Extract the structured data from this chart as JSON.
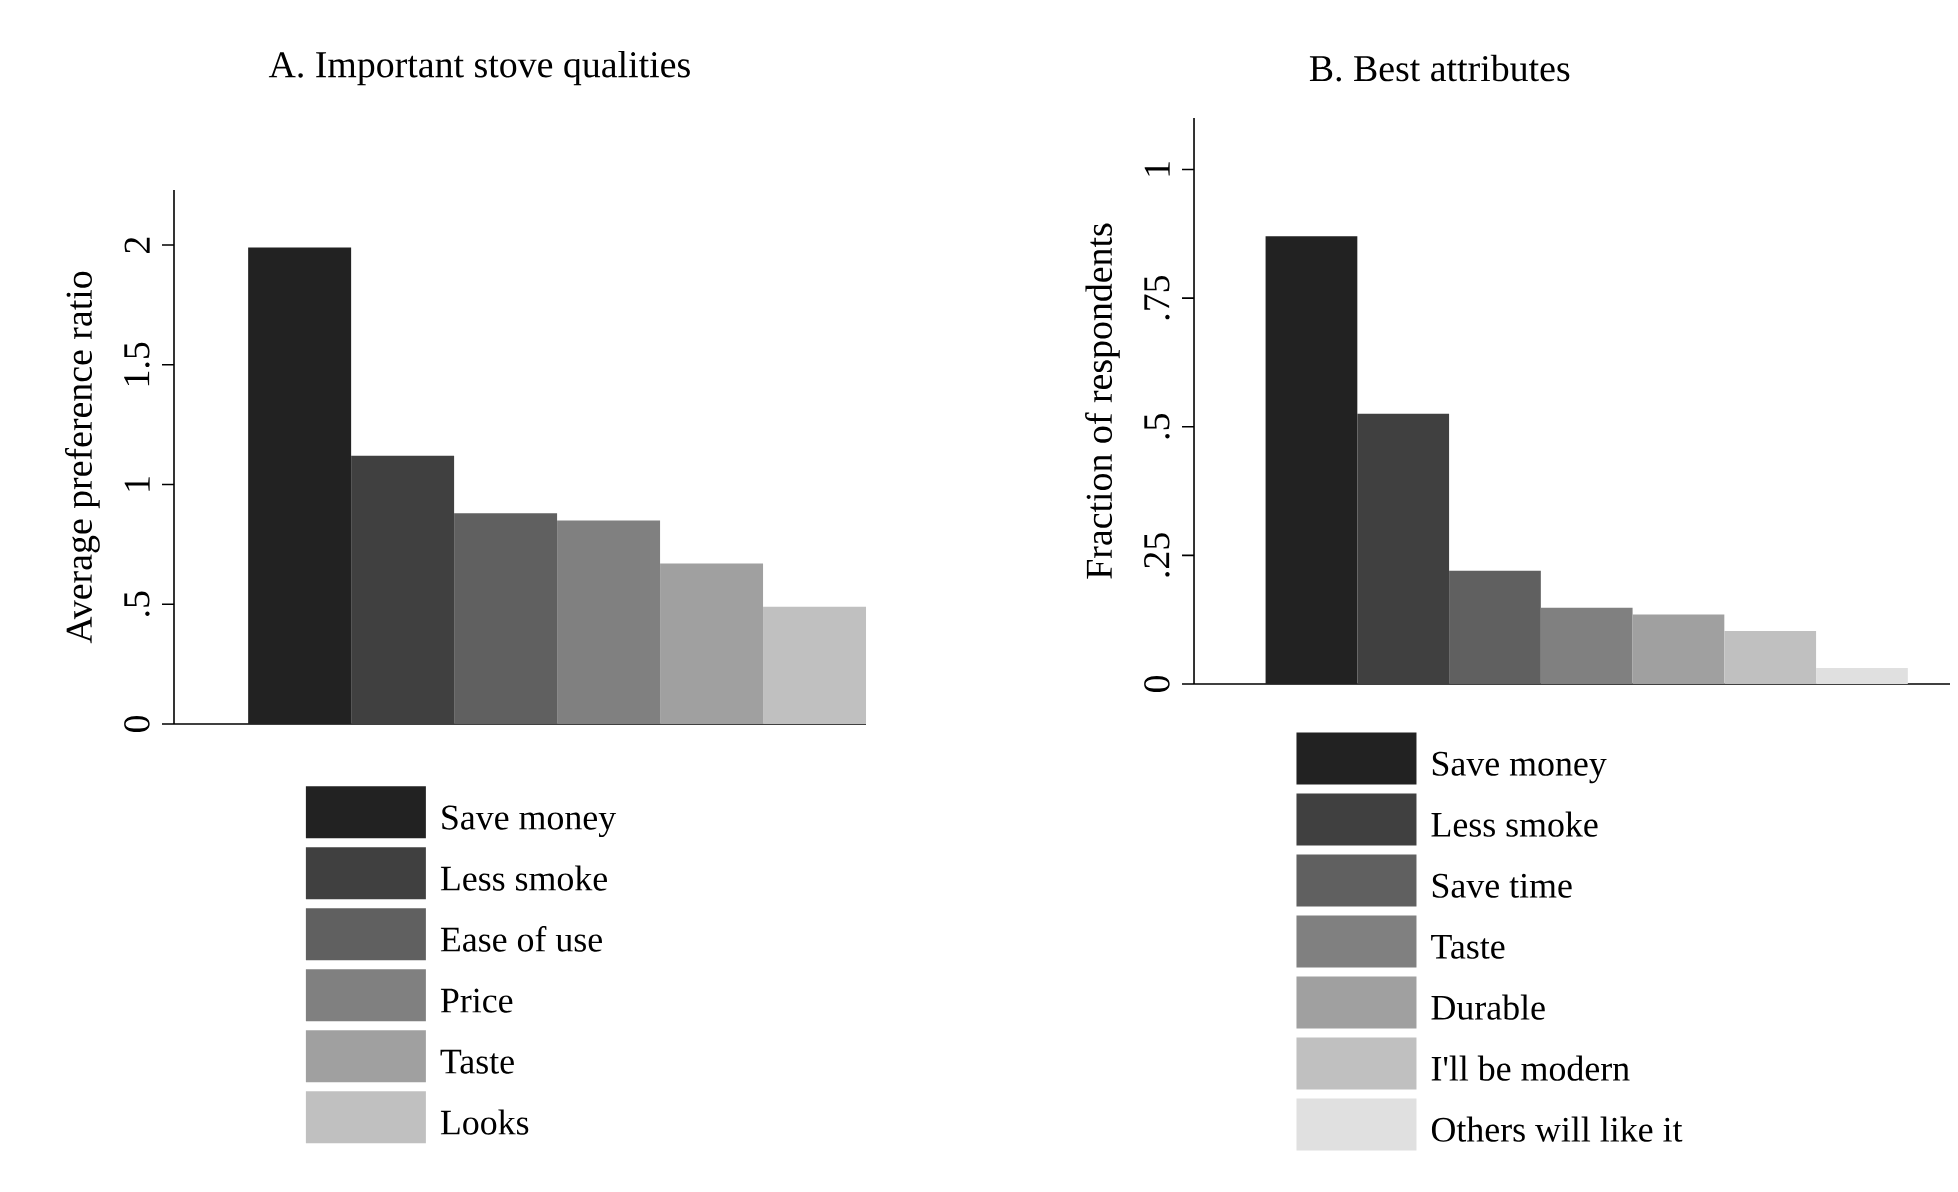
{
  "chart_data": [
    {
      "type": "bar",
      "title": "A. Important stove qualities",
      "ylabel": "Average preference ratio",
      "categories": [
        null,
        null,
        null,
        null,
        null,
        null
      ],
      "series": [
        {
          "name": "Save money",
          "color": "#222222",
          "values": [
            1.99,
            null,
            null,
            null,
            null,
            null
          ]
        },
        {
          "name": "Less smoke",
          "color": "#404040",
          "values": [
            null,
            1.12,
            null,
            null,
            null,
            null
          ]
        },
        {
          "name": "Ease of use",
          "color": "#606060",
          "values": [
            null,
            null,
            0.88,
            null,
            null,
            null
          ]
        },
        {
          "name": "Price",
          "color": "#808080",
          "values": [
            null,
            null,
            null,
            0.85,
            null,
            null
          ]
        },
        {
          "name": "Taste",
          "color": "#a0a0a0",
          "values": [
            null,
            null,
            null,
            null,
            0.67,
            null
          ]
        },
        {
          "name": "Looks",
          "color": "#c0c0c0",
          "values": [
            null,
            null,
            null,
            null,
            null,
            0.49
          ]
        }
      ],
      "stacked": true,
      "ylim": [
        0,
        2.23
      ],
      "yticks": [
        0,
        {
          "value": 0.5,
          "label": ".5"
        },
        1,
        1.5,
        2
      ],
      "legend": "bottom",
      "tick_labels": "y"
    },
    {
      "type": "bar",
      "title": "B. Best attributes",
      "ylabel": "Fraction of respondents",
      "categories": [
        null,
        null,
        null,
        null,
        null,
        null,
        null
      ],
      "series": [
        {
          "name": "Save money",
          "color": "#222222",
          "values": [
            0.87,
            null,
            null,
            null,
            null,
            null,
            null
          ]
        },
        {
          "name": "Less smoke",
          "color": "#404040",
          "values": [
            null,
            0.525,
            null,
            null,
            null,
            null,
            null
          ]
        },
        {
          "name": "Save time",
          "color": "#606060",
          "values": [
            null,
            null,
            0.22,
            null,
            null,
            null,
            null
          ]
        },
        {
          "name": "Taste",
          "color": "#808080",
          "values": [
            null,
            null,
            null,
            0.148,
            null,
            null,
            null
          ]
        },
        {
          "name": "Durable",
          "color": "#a0a0a0",
          "values": [
            null,
            null,
            null,
            null,
            0.135,
            null,
            null
          ]
        },
        {
          "name": "I'll be modern",
          "color": "#c0c0c0",
          "values": [
            null,
            null,
            null,
            null,
            null,
            0.103,
            null
          ]
        },
        {
          "name": "Others will like it",
          "color": "#e0e0e0",
          "values": [
            null,
            null,
            null,
            null,
            null,
            null,
            0.031
          ]
        }
      ],
      "stacked": true,
      "ylim": [
        0,
        1.1
      ],
      "yticks": [
        0,
        {
          "value": 0.25,
          "label": ".25"
        },
        {
          "value": 0.5,
          "label": ".5"
        },
        {
          "value": 0.75,
          "label": ".75"
        },
        1
      ],
      "legend": "bottom",
      "tick_labels": "y"
    }
  ]
}
